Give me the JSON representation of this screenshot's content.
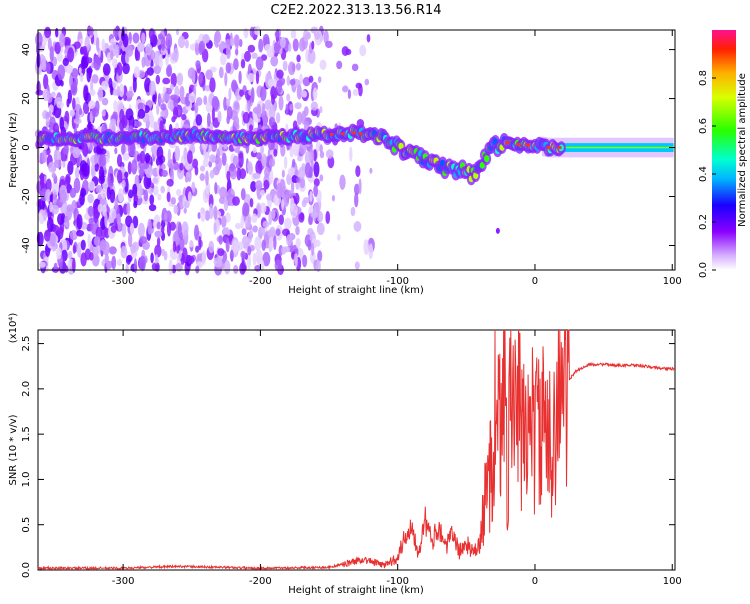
{
  "title": "C2E2.2022.313.13.56.R14",
  "chart_data": [
    {
      "type": "heatmap",
      "name": "spectrogram",
      "xlabel": "Height of straight line (km)",
      "ylabel": "Frequency (Hz)",
      "xlim": [
        -362,
        102
      ],
      "ylim": [
        -50,
        48
      ],
      "xticks": [
        -300,
        -200,
        -100,
        0,
        100
      ],
      "xtick_labels": [
        "-300",
        "-200",
        "-100",
        "0",
        "100"
      ],
      "yticks": [
        -40,
        -20,
        0,
        20,
        40
      ],
      "ytick_labels": [
        "-40",
        "-20",
        "0",
        "20",
        "40"
      ],
      "ridge": {
        "x": [
          -362,
          -300,
          -250,
          -200,
          -160,
          -130,
          -110,
          -100,
          -90,
          -80,
          -70,
          -60,
          -55,
          -45,
          -40,
          -35,
          -30,
          -25,
          -20,
          -10,
          0,
          10,
          30,
          60,
          102
        ],
        "freq_hz": [
          4,
          4,
          5,
          4,
          5,
          6,
          4,
          0,
          -3,
          -5,
          -8,
          -10,
          -9,
          -12,
          -6,
          -3,
          0,
          1,
          2,
          1,
          1,
          0,
          0,
          0,
          0
        ]
      },
      "colorbar": {
        "label": "Normalized spectral amplitude",
        "range": [
          0.0,
          1.0
        ],
        "ticks": [
          0.0,
          0.2,
          0.4,
          0.6,
          0.8
        ],
        "tick_labels": [
          "0.0",
          "0.2",
          "0.4",
          "0.6",
          "0.8"
        ]
      }
    },
    {
      "type": "line",
      "name": "snr",
      "xlabel": "Height of straight line (km)",
      "ylabel": "SNR (10 * v/v)",
      "multiplier": "(x10⁴)",
      "xlim": [
        -362,
        102
      ],
      "ylim": [
        0,
        2.65
      ],
      "xticks": [
        -300,
        -200,
        -100,
        0,
        100
      ],
      "xtick_labels": [
        "-300",
        "-200",
        "-100",
        "0",
        "100"
      ],
      "yticks": [
        0.0,
        0.5,
        1.0,
        1.5,
        2.0,
        2.5
      ],
      "ytick_labels": [
        "0.0",
        "0.5",
        "1.0",
        "1.5",
        "2.0",
        "2.5"
      ],
      "color": "#e83030",
      "x": [
        -362,
        -300,
        -260,
        -200,
        -150,
        -135,
        -125,
        -110,
        -100,
        -95,
        -90,
        -85,
        -80,
        -75,
        -70,
        -65,
        -60,
        -55,
        -50,
        -45,
        -40,
        -35,
        -30,
        -27,
        -25,
        -22,
        -20,
        -18,
        -15,
        -12,
        -10,
        -5,
        0,
        5,
        10,
        15,
        20,
        25,
        30,
        40,
        50,
        60,
        70,
        80,
        90,
        102
      ],
      "y": [
        0.02,
        0.02,
        0.04,
        0.02,
        0.03,
        0.08,
        0.12,
        0.05,
        0.15,
        0.35,
        0.5,
        0.2,
        0.55,
        0.3,
        0.5,
        0.25,
        0.4,
        0.2,
        0.3,
        0.18,
        0.28,
        0.9,
        1.4,
        2.6,
        1.2,
        2.0,
        1.0,
        2.2,
        1.6,
        1.9,
        1.4,
        1.7,
        1.5,
        1.6,
        1.3,
        1.8,
        2.0,
        2.1,
        2.2,
        2.27,
        2.27,
        2.26,
        2.26,
        2.25,
        2.23,
        2.22
      ]
    }
  ]
}
